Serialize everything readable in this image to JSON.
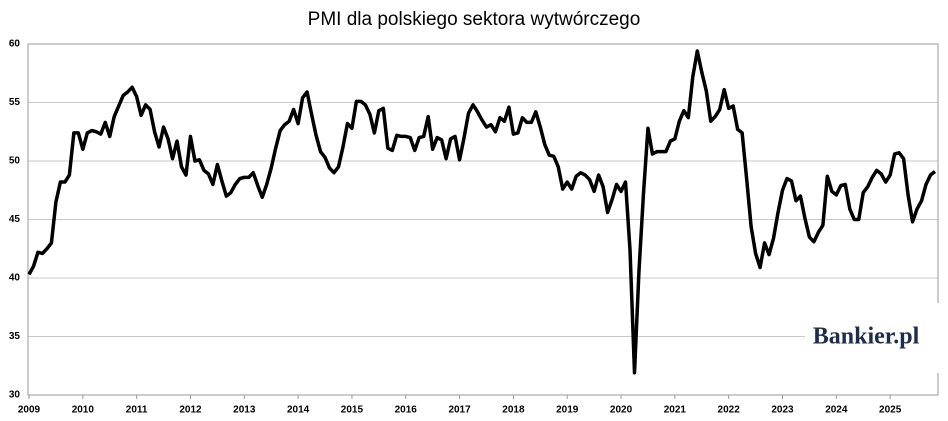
{
  "chart_data": {
    "type": "line",
    "title": "PMI dla polskiego sektora wytwórczego",
    "watermark": "Bankier.pl",
    "categories": [
      "2009",
      null,
      null,
      null,
      null,
      null,
      null,
      null,
      null,
      null,
      null,
      null,
      "2010",
      null,
      null,
      null,
      null,
      null,
      null,
      null,
      null,
      null,
      null,
      null,
      "2011",
      null,
      null,
      null,
      null,
      null,
      null,
      null,
      null,
      null,
      null,
      null,
      "2012",
      null,
      null,
      null,
      null,
      null,
      null,
      null,
      null,
      null,
      null,
      null,
      "2013",
      null,
      null,
      null,
      null,
      null,
      null,
      null,
      null,
      null,
      null,
      null,
      "2014",
      null,
      null,
      null,
      null,
      null,
      null,
      null,
      null,
      null,
      null,
      null,
      "2015",
      null,
      null,
      null,
      null,
      null,
      null,
      null,
      null,
      null,
      null,
      null,
      "2016",
      null,
      null,
      null,
      null,
      null,
      null,
      null,
      null,
      null,
      null,
      null,
      "2017",
      null,
      null,
      null,
      null,
      null,
      null,
      null,
      null,
      null,
      null,
      null,
      "2018",
      null,
      null,
      null,
      null,
      null,
      null,
      null,
      null,
      null,
      null,
      null,
      "2019",
      null,
      null,
      null,
      null,
      null,
      null,
      null,
      null,
      null,
      null,
      null,
      "2020",
      null,
      null,
      null,
      null,
      null,
      null,
      null,
      null,
      null,
      null,
      null,
      "2021",
      null,
      null,
      null,
      null,
      null,
      null,
      null,
      null,
      null,
      null,
      null,
      "2022",
      null,
      null,
      null,
      null,
      null,
      null,
      null,
      null,
      null,
      null,
      null,
      "2023",
      null,
      null,
      null,
      null,
      null,
      null,
      null,
      null,
      null,
      null,
      null,
      "2024",
      null,
      null,
      null,
      null,
      null,
      null,
      null,
      null,
      null,
      null,
      null,
      "2025",
      null,
      null,
      null,
      null,
      null,
      null,
      null,
      null,
      null,
      null
    ],
    "series": [
      {
        "name": "PMI",
        "color": "#000000",
        "values": [
          40.3,
          41.0,
          42.2,
          42.1,
          42.5,
          43.0,
          46.5,
          48.2,
          48.2,
          48.8,
          52.4,
          52.4,
          51.0,
          52.4,
          52.6,
          52.5,
          52.3,
          53.3,
          52.1,
          53.8,
          54.7,
          55.6,
          55.9,
          56.3,
          55.5,
          53.9,
          54.8,
          54.4,
          52.5,
          51.2,
          52.9,
          51.9,
          50.2,
          51.7,
          49.5,
          48.8,
          52.1,
          50.0,
          50.1,
          49.2,
          48.9,
          48.0,
          49.7,
          48.3,
          47.0,
          47.3,
          48.0,
          48.5,
          48.6,
          48.6,
          49.0,
          47.9,
          46.9,
          48.0,
          49.4,
          51.1,
          52.6,
          53.1,
          53.4,
          54.4,
          53.2,
          55.4,
          55.9,
          54.0,
          52.2,
          50.8,
          50.3,
          49.4,
          49.0,
          49.5,
          51.2,
          53.2,
          52.8,
          55.1,
          55.1,
          54.8,
          54.0,
          52.4,
          54.3,
          54.5,
          51.1,
          50.9,
          52.2,
          52.1,
          52.1,
          52.0,
          50.9,
          52.0,
          52.1,
          53.8,
          51.0,
          52.0,
          51.8,
          50.2,
          51.9,
          52.1,
          50.1,
          52.0,
          54.1,
          54.8,
          54.2,
          53.5,
          52.9,
          53.1,
          52.5,
          53.7,
          53.4,
          54.6,
          52.3,
          52.4,
          53.7,
          53.3,
          53.3,
          54.2,
          52.9,
          51.4,
          50.5,
          50.4,
          49.5,
          47.6,
          48.2,
          47.6,
          48.7,
          49.0,
          48.8,
          48.4,
          47.4,
          48.8,
          47.8,
          45.6,
          46.7,
          48.0,
          47.4,
          48.2,
          42.4,
          31.9,
          40.6,
          47.2,
          52.8,
          50.6,
          50.8,
          50.8,
          50.8,
          51.7,
          51.9,
          53.4,
          54.3,
          53.7,
          57.2,
          59.4,
          57.6,
          56.0,
          53.4,
          53.8,
          54.4,
          56.1,
          54.5,
          54.7,
          52.7,
          52.4,
          48.5,
          44.4,
          42.1,
          40.9,
          43.0,
          42.0,
          43.4,
          45.6,
          47.5,
          48.5,
          48.3,
          46.6,
          47.0,
          45.1,
          43.5,
          43.1,
          43.9,
          44.5,
          48.7,
          47.4,
          47.1,
          47.9,
          48.0,
          45.9,
          45.0,
          45.0,
          47.3,
          47.8,
          48.6,
          49.2,
          48.9,
          48.2,
          48.8,
          50.6,
          50.7,
          50.2,
          47.1,
          44.8,
          45.9,
          46.6,
          48.0,
          48.8,
          49.1
        ]
      }
    ],
    "ylim": [
      30,
      60
    ],
    "yticks": [
      30,
      35,
      40,
      45,
      50,
      55,
      60
    ],
    "grid": true
  }
}
